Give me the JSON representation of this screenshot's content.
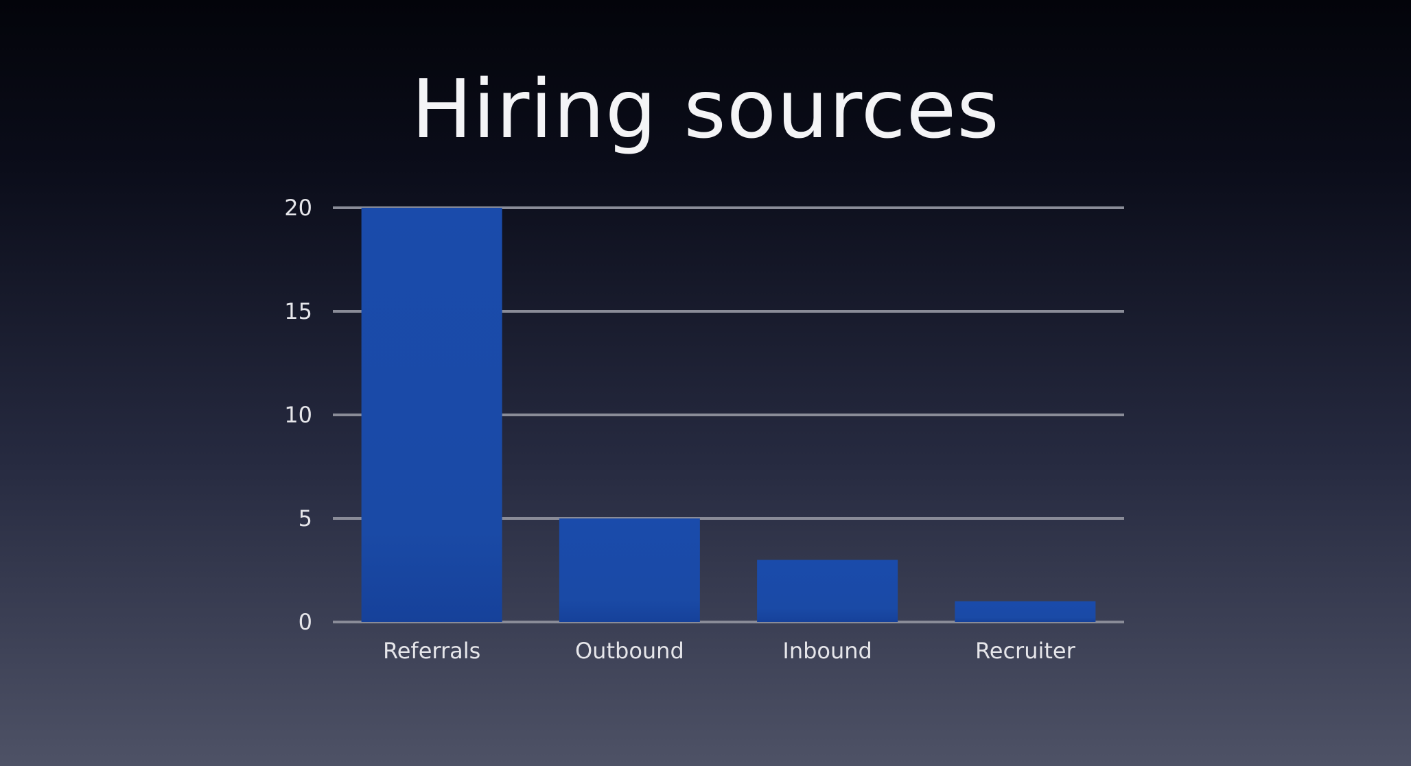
{
  "chart_data": {
    "type": "bar",
    "title": "Hiring sources",
    "categories": [
      "Referrals",
      "Outbound",
      "Inbound",
      "Recruiter"
    ],
    "values": [
      20,
      5,
      3,
      1
    ],
    "ylim": [
      0,
      20
    ],
    "yticks": [
      "0",
      "5",
      "10",
      "15",
      "20"
    ],
    "ytick_values": [
      0,
      5,
      10,
      15,
      20
    ],
    "grid": true,
    "bar_color": "#1a4aa6",
    "bar_color_light": "#1c4fb0",
    "grid_color": "#8a8c98"
  }
}
